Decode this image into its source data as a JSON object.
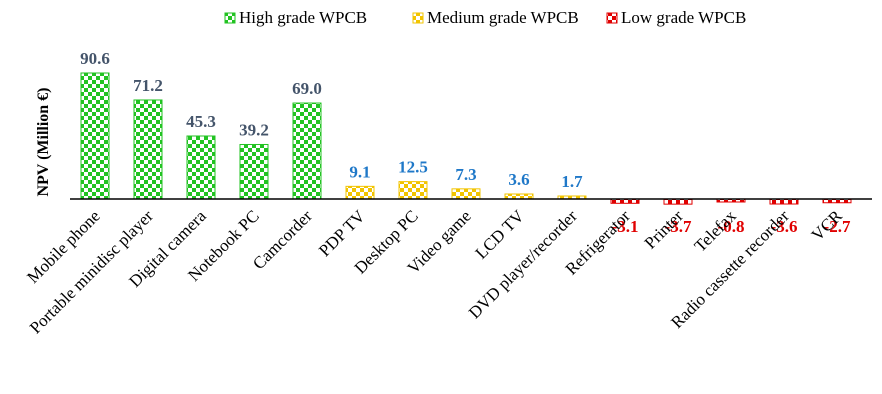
{
  "chart_data": {
    "type": "bar",
    "title": "",
    "xlabel": "",
    "ylabel": "NPV (Million €)",
    "categories": [
      "Mobile phone",
      "Portable minidisc player",
      "Digital camera",
      "Notebook PC",
      "Camcorder",
      "PDP TV",
      "Desktop PC",
      "Video game",
      "LCD TV",
      "DVD player/recorder",
      "Refrigerator",
      "Printer",
      "Telefax",
      "Radio cassette recorder",
      "VCR"
    ],
    "values": [
      90.6,
      71.2,
      45.3,
      39.2,
      69.0,
      9.1,
      12.5,
      7.3,
      3.6,
      1.7,
      -3.1,
      -3.7,
      -0.8,
      -3.6,
      -2.7
    ],
    "value_labels": [
      "90.6",
      "71.2",
      "45.3",
      "39.2",
      "69.0",
      "9.1",
      "12.5",
      "7.3",
      "3.6",
      "1.7",
      "-3.1",
      "-3.7",
      "-0.8",
      "-3.6",
      "-2.7"
    ],
    "groups": [
      "high",
      "high",
      "high",
      "high",
      "high",
      "medium",
      "medium",
      "medium",
      "medium",
      "medium",
      "low",
      "low",
      "low",
      "low",
      "low"
    ],
    "series": [
      {
        "key": "high",
        "name": "High grade WPCB",
        "fill": "#22c322",
        "pattern": "#ffffff",
        "label_color": "#44546a"
      },
      {
        "key": "medium",
        "name": "Medium grade WPCB",
        "fill": "#f2c400",
        "pattern": "#ffffff",
        "label_color": "#1f78c8"
      },
      {
        "key": "low",
        "name": "Low grade WPCB",
        "fill": "#e00000",
        "pattern": "#ffffff",
        "label_color": "#e00000"
      }
    ],
    "legend_position": "top",
    "grid": false,
    "ylim": [
      -4,
      91
    ]
  }
}
